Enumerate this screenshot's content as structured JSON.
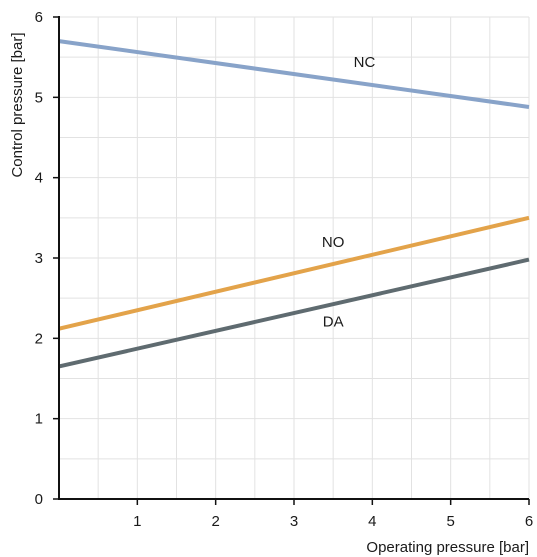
{
  "chart_data": {
    "type": "line",
    "title": "",
    "xlabel": "Operating pressure [bar]",
    "ylabel": "Control pressure [bar]",
    "xlim": [
      0,
      6
    ],
    "ylim": [
      0,
      6
    ],
    "x_ticks": [
      "1",
      "2",
      "3",
      "4",
      "5",
      "6"
    ],
    "y_ticks": [
      "0",
      "1",
      "2",
      "3",
      "4",
      "5",
      "6"
    ],
    "grid": true,
    "minor_grid": true,
    "legend": "none",
    "series": [
      {
        "name": "NC",
        "x": [
          0,
          6
        ],
        "values": [
          5.7,
          4.88
        ],
        "color": "#88a3c9"
      },
      {
        "name": "NO",
        "x": [
          0,
          6
        ],
        "values": [
          2.12,
          3.5
        ],
        "color": "#e3a34a"
      },
      {
        "name": "DA",
        "x": [
          0,
          6
        ],
        "values": [
          1.65,
          2.98
        ],
        "color": "#5f6b70"
      }
    ],
    "annotations": [
      {
        "text": "NC",
        "series": "NC",
        "x": 3.9,
        "y": 5.38
      },
      {
        "text": "NO",
        "series": "NO",
        "x": 3.5,
        "y": 3.14
      },
      {
        "text": "DA",
        "series": "DA",
        "x": 3.5,
        "y": 2.15
      }
    ]
  }
}
